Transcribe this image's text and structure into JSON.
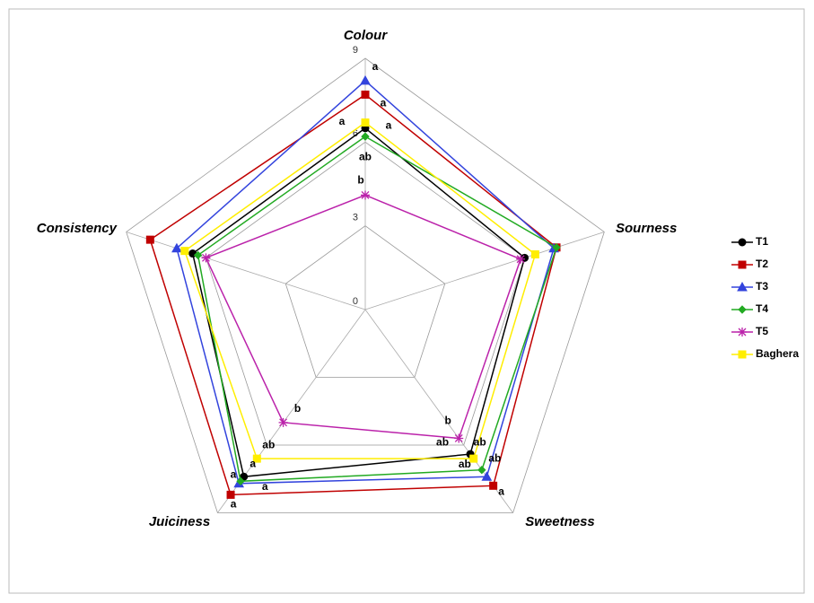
{
  "chart_data": {
    "type": "radar",
    "axes": [
      "Colour",
      "Sourness",
      "Sweetness",
      "Juiciness",
      "Consistency"
    ],
    "rlim": [
      0,
      9
    ],
    "rticks": [
      0,
      3,
      6,
      9
    ],
    "grid": true,
    "legend": "right",
    "series": [
      {
        "name": "T1",
        "color": "#000000",
        "marker": "circle",
        "values": [
          6.5,
          6.0,
          6.4,
          7.4,
          6.5
        ],
        "letters": [
          "a",
          null,
          "ab",
          "a",
          null
        ]
      },
      {
        "name": "T2",
        "color": "#c00000",
        "marker": "square",
        "values": [
          7.7,
          7.2,
          7.8,
          8.2,
          8.1
        ],
        "letters": [
          "a",
          null,
          "a",
          "a",
          null
        ]
      },
      {
        "name": "T3",
        "color": "#3344dd",
        "marker": "triangle",
        "values": [
          8.2,
          7.1,
          7.4,
          7.7,
          7.1
        ],
        "letters": [
          "a",
          null,
          "ab",
          "a",
          null
        ]
      },
      {
        "name": "T4",
        "color": "#22aa22",
        "marker": "diamond",
        "values": [
          6.2,
          7.2,
          7.1,
          7.6,
          6.3
        ],
        "letters": [
          "ab",
          null,
          "ab",
          "a",
          null
        ]
      },
      {
        "name": "T5",
        "color": "#bb22aa",
        "marker": "star",
        "values": [
          4.1,
          5.85,
          5.7,
          5.0,
          6.0
        ],
        "letters": [
          "b",
          null,
          "b",
          "b",
          null
        ]
      },
      {
        "name": "Baghera",
        "color": "#ffee00",
        "marker": "square",
        "values": [
          6.7,
          6.4,
          6.6,
          6.6,
          6.8
        ],
        "letters": [
          "a",
          null,
          "ab",
          "ab",
          null
        ]
      }
    ]
  }
}
